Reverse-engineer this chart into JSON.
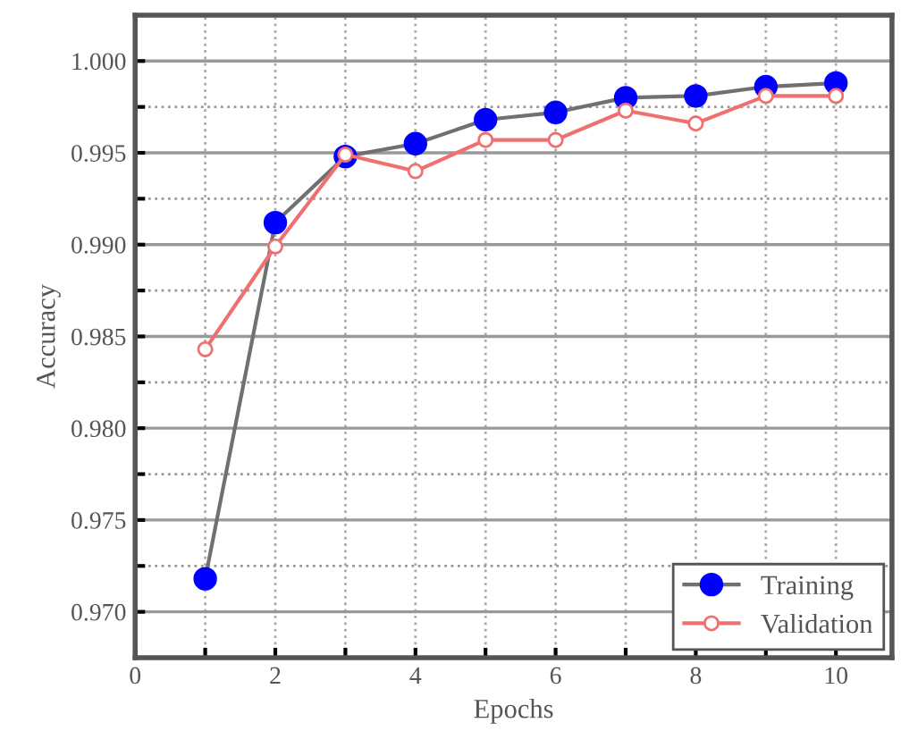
{
  "chart_data": {
    "type": "line",
    "xlabel": "Epochs",
    "ylabel": "Accuracy",
    "x": [
      1,
      2,
      3,
      4,
      5,
      6,
      7,
      8,
      9,
      10
    ],
    "series": [
      {
        "name": "Training",
        "color": "#0000ff",
        "values": [
          0.9718,
          0.9912,
          0.9948,
          0.9955,
          0.9968,
          0.9972,
          0.998,
          0.9981,
          0.9986,
          0.9988
        ]
      },
      {
        "name": "Validation",
        "color": "#f07070",
        "values": [
          0.9843,
          0.9899,
          0.9949,
          0.994,
          0.9957,
          0.9957,
          0.9973,
          0.9966,
          0.9981,
          0.9981
        ]
      }
    ],
    "xlim": [
      0,
      10.8
    ],
    "ylim": [
      0.9675,
      1.0025
    ],
    "xticks": [
      0,
      {
        "value": 1,
        "label": null
      },
      2,
      {
        "value": 3,
        "label": null
      },
      4,
      {
        "value": 5,
        "label": null
      },
      6,
      {
        "value": 7,
        "label": null
      },
      8,
      {
        "value": 9,
        "label": null
      },
      10
    ],
    "yticks": [
      {
        "value": 0.97,
        "label": "0.970"
      },
      {
        "value": 0.9725,
        "label": null
      },
      {
        "value": 0.975,
        "label": "0.975"
      },
      {
        "value": 0.9775,
        "label": null
      },
      {
        "value": 0.98,
        "label": "0.980"
      },
      {
        "value": 0.9825,
        "label": null
      },
      {
        "value": 0.985,
        "label": "0.985"
      },
      {
        "value": 0.9875,
        "label": null
      },
      {
        "value": 0.99,
        "label": "0.990"
      },
      {
        "value": 0.9925,
        "label": null
      },
      {
        "value": 0.995,
        "label": "0.995"
      },
      {
        "value": 0.9975,
        "label": null
      },
      {
        "value": 1.0,
        "label": "1.000"
      }
    ],
    "grid": true,
    "legend": "bottom right",
    "marker": "circle",
    "line_style": "solid"
  }
}
